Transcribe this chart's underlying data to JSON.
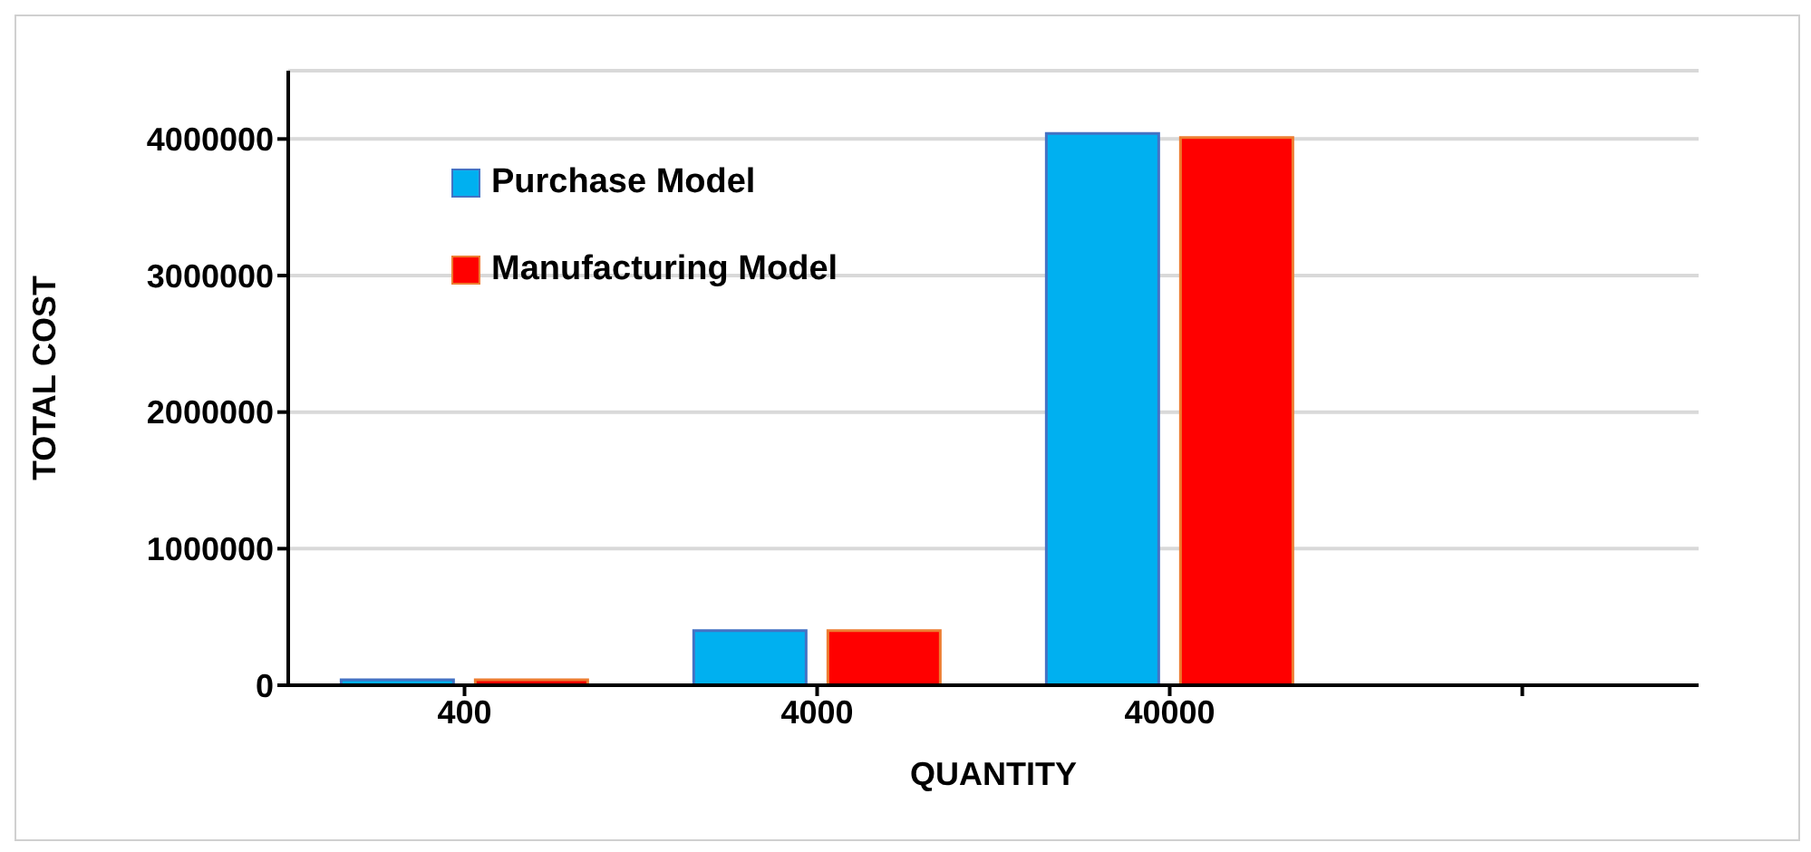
{
  "chart_data": {
    "type": "bar",
    "xlabel": "QUANTITY",
    "ylabel": "TOTAL COST",
    "categories": [
      "400",
      "4000",
      "40000",
      null
    ],
    "series": [
      {
        "name": "Purchase Model",
        "color": "#00b0f0",
        "values": [
          40000,
          400000,
          4040000,
          null
        ]
      },
      {
        "name": "Manufacturing Model",
        "color": "#ff0000",
        "values": [
          40000,
          400000,
          4010000,
          null
        ]
      }
    ],
    "ylim": [
      0,
      4500000
    ],
    "yticks": [
      0,
      1000000,
      2000000,
      3000000,
      4000000
    ],
    "grid": "y",
    "legend": "top left"
  }
}
